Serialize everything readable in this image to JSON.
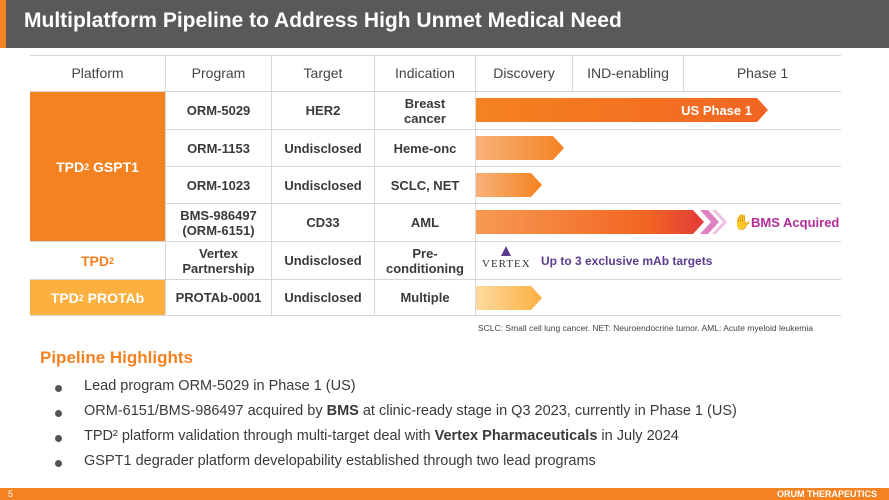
{
  "title": "Multiplatform Pipeline to Address High Unmet Medical Need",
  "table": {
    "headers": [
      "Platform",
      "Program",
      "Target",
      "Indication",
      "Discovery",
      "IND-enabling",
      "Phase 1"
    ],
    "platforms": [
      {
        "label": "TPD",
        "sup": "2",
        "suffix": " GSPT1"
      },
      {
        "label": "TPD",
        "sup": "2",
        "suffix": ""
      },
      {
        "label": "TPD",
        "sup": "2",
        "suffix": " PROTAb"
      }
    ],
    "rows": [
      {
        "program": "ORM-5029",
        "target": "HER2",
        "indication": "Breast\ncancer",
        "stage_label": "US Phase 1"
      },
      {
        "program": "ORM-1153",
        "target": "Undisclosed",
        "indication": "Heme-onc",
        "stage_label": ""
      },
      {
        "program": "ORM-1023",
        "target": "Undisclosed",
        "indication": "SCLC, NET",
        "stage_label": ""
      },
      {
        "program": "BMS-986497\n(ORM-6151)",
        "target": "CD33",
        "indication": "AML",
        "stage_label": "BMS Acquired"
      },
      {
        "program": "Vertex\nPartnership",
        "target": "Undisclosed",
        "indication": "Pre-\nconditioning",
        "stage_label": "Up to 3 exclusive mAb targets"
      },
      {
        "program": "PROTAb-0001",
        "target": "Undisclosed",
        "indication": "Multiple",
        "stage_label": ""
      }
    ],
    "partner_logo": "VERTEX"
  },
  "footnote": "SCLC: Small cell lung cancer. NET: Neuroendocrine tumor. AML: Acute myeloid leukemia",
  "highlights": {
    "title": "Pipeline Highlights",
    "bullets": [
      {
        "pre": "Lead program ORM-5029 in Phase 1 (US)",
        "bold": "",
        "post": ""
      },
      {
        "pre": "ORM-6151/BMS-986497 acquired by ",
        "bold": "BMS",
        "post": " at clinic-ready stage in Q3 2023, currently in Phase 1 (US)"
      },
      {
        "pre": "TPD² platform validation through multi-target deal with ",
        "bold": "Vertex Pharmaceuticals",
        "post": " in July 2024"
      },
      {
        "pre": "GSPT1 degrader platform developability established through two lead programs",
        "bold": "",
        "post": ""
      }
    ]
  },
  "footer": {
    "page": "5",
    "brand": "ORUM THERAPEUTICS"
  },
  "colors": {
    "orange": "#f58220",
    "dark_orange": "#f26522",
    "gold": "#fbb040",
    "gray": "#58595b",
    "purple": "#b32d9a",
    "vertex_purple": "#5c3b8e"
  },
  "icons": {
    "acquired": "hand-icon",
    "partner": "vertex-logo"
  }
}
